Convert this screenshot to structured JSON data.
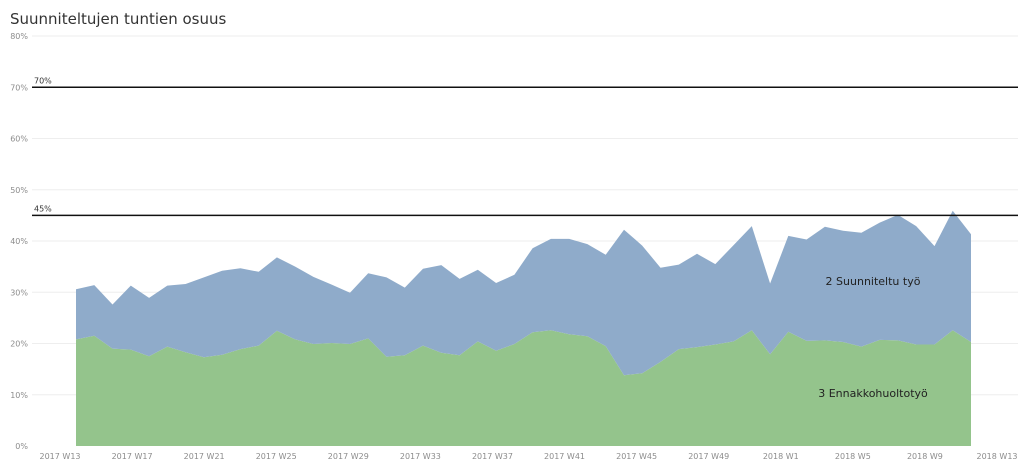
{
  "title": "Suunniteltujen tuntien osuus",
  "chart_data": {
    "type": "area",
    "title": "Suunniteltujen tuntien osuus",
    "stacked": true,
    "x_tick_labels": [
      "2017 W13",
      "2017 W17",
      "2017 W21",
      "2017 W25",
      "2017 W29",
      "2017 W33",
      "2017 W37",
      "2017 W41",
      "2017 W45",
      "2017 W49",
      "2018 W1",
      "2018 W5",
      "2018 W9",
      "2018 W13"
    ],
    "y_tick_labels": [
      "0%",
      "10%",
      "20%",
      "30%",
      "40%",
      "50%",
      "60%",
      "70%",
      "80%"
    ],
    "ylim": [
      0,
      80
    ],
    "grid": true,
    "reference_lines": [
      {
        "value": 70,
        "label": "70%"
      },
      {
        "value": 45,
        "label": "45%"
      }
    ],
    "series": [
      {
        "name": "3 Ennakkohuoltotyö",
        "color": "#94c48c",
        "values": [
          20.8,
          21.5,
          19.0,
          18.8,
          17.5,
          19.4,
          18.3,
          17.3,
          17.8,
          18.9,
          19.6,
          22.5,
          20.8,
          19.9,
          20.1,
          19.9,
          21.0,
          17.4,
          17.7,
          19.6,
          18.2,
          17.7,
          20.4,
          18.6,
          19.9,
          22.2,
          22.6,
          21.8,
          21.4,
          19.5,
          13.8,
          14.2,
          16.4,
          18.9,
          19.3,
          19.8,
          20.4,
          22.6,
          17.9,
          22.3,
          20.5,
          20.6,
          20.3,
          19.4,
          20.7,
          20.6,
          19.8,
          19.8,
          22.6,
          20.3
        ]
      },
      {
        "name": "2 Suunniteltu työ",
        "color": "#8fabca",
        "values": [
          9.8,
          9.9,
          8.6,
          12.5,
          11.4,
          11.9,
          13.3,
          15.6,
          16.4,
          15.8,
          14.4,
          14.3,
          14.2,
          13.1,
          11.4,
          10.0,
          12.7,
          15.5,
          13.2,
          15.0,
          17.1,
          14.9,
          14.0,
          13.2,
          13.5,
          16.4,
          17.8,
          18.6,
          18.0,
          17.8,
          28.4,
          24.9,
          18.4,
          16.5,
          18.2,
          15.7,
          18.8,
          20.3,
          13.8,
          18.7,
          19.8,
          22.2,
          21.7,
          22.2,
          22.9,
          24.5,
          23.1,
          19.2,
          23.3,
          21.0
        ]
      }
    ]
  }
}
